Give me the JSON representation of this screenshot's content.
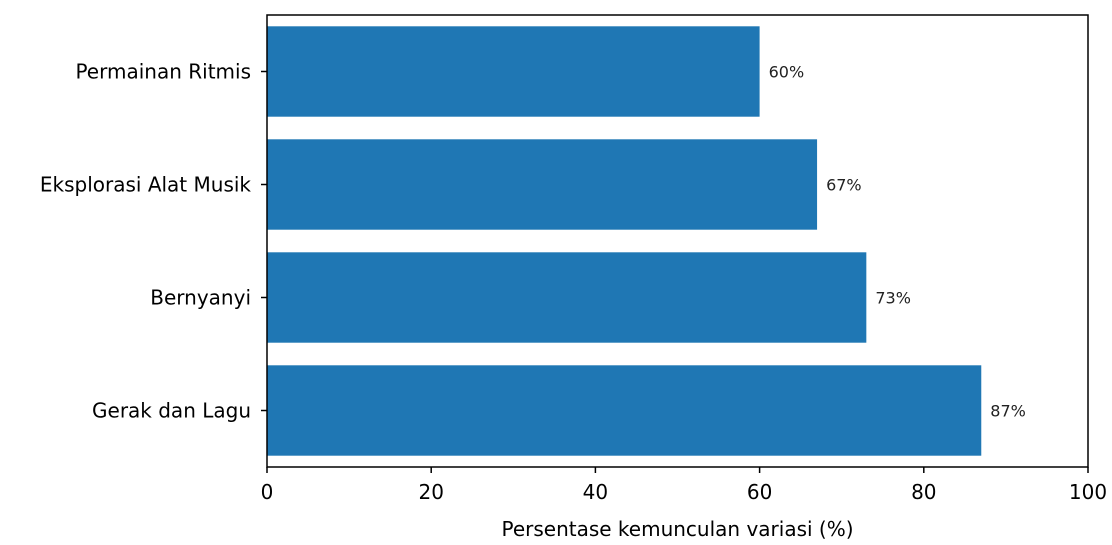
{
  "chart_data": {
    "type": "bar",
    "orientation": "horizontal",
    "categories": [
      "Gerak dan Lagu",
      "Bernyanyi",
      "Eksplorasi Alat Musik",
      "Permainan Ritmis"
    ],
    "values": [
      87,
      73,
      67,
      60
    ],
    "data_labels": [
      "87%",
      "73%",
      "67%",
      "60%"
    ],
    "xlabel": "Persentase kemunculan variasi (%)",
    "ylabel": "",
    "xlim": [
      0,
      100
    ],
    "xticks": [
      0,
      20,
      40,
      60,
      80,
      100
    ],
    "grid": false,
    "bar_color": "#1f77b4"
  }
}
